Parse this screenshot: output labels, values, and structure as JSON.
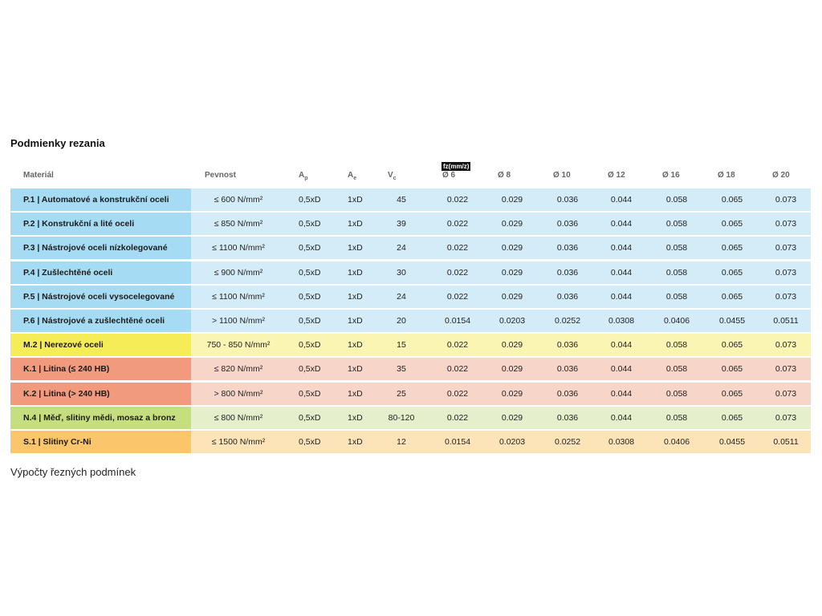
{
  "title": "Podmienky rezania",
  "fz_label": "fz(mm/z)",
  "header": [
    "Materiál",
    "Pevnost",
    {
      "main": "A",
      "sub": "p"
    },
    {
      "main": "A",
      "sub": "e"
    },
    {
      "main": "V",
      "sub": "c"
    },
    "Ø 6",
    "Ø 8",
    "Ø 10",
    "Ø 12",
    "Ø 16",
    "Ø 18",
    "Ø 20"
  ],
  "rows": [
    [
      "P.1 | Automatové a konstrukční oceli",
      "≤ 600 N/mm²",
      "0,5xD",
      "1xD",
      "45",
      "0.022",
      "0.029",
      "0.036",
      "0.044",
      "0.058",
      "0.065",
      "0.073"
    ],
    [
      "P.2 | Konstrukční a lité oceli",
      "≤ 850 N/mm²",
      "0,5xD",
      "1xD",
      "39",
      "0.022",
      "0.029",
      "0.036",
      "0.044",
      "0.058",
      "0.065",
      "0.073"
    ],
    [
      "P.3 | Nástrojové oceli nízkolegované",
      "≤ 1100 N/mm²",
      "0,5xD",
      "1xD",
      "24",
      "0.022",
      "0.029",
      "0.036",
      "0.044",
      "0.058",
      "0.065",
      "0.073"
    ],
    [
      "P.4 | Zušlechtěné oceli",
      "≤ 900 N/mm²",
      "0,5xD",
      "1xD",
      "30",
      "0.022",
      "0.029",
      "0.036",
      "0.044",
      "0.058",
      "0.065",
      "0.073"
    ],
    [
      "P.5 | Nástrojové oceli vysocelegované",
      "≤ 1100 N/mm²",
      "0,5xD",
      "1xD",
      "24",
      "0.022",
      "0.029",
      "0.036",
      "0.044",
      "0.058",
      "0.065",
      "0.073"
    ],
    [
      "P.6 | Nástrojové a zušlechtěné oceli",
      "> 1100 N/mm²",
      "0,5xD",
      "1xD",
      "20",
      "0.0154",
      "0.0203",
      "0.0252",
      "0.0308",
      "0.0406",
      "0.0455",
      "0.0511"
    ],
    [
      "M.2 | Nerezové oceli",
      "750 - 850 N/mm²",
      "0,5xD",
      "1xD",
      "15",
      "0.022",
      "0.029",
      "0.036",
      "0.044",
      "0.058",
      "0.065",
      "0.073"
    ],
    [
      "K.1 | Litina (≤ 240 HB)",
      "≤ 820 N/mm²",
      "0,5xD",
      "1xD",
      "35",
      "0.022",
      "0.029",
      "0.036",
      "0.044",
      "0.058",
      "0.065",
      "0.073"
    ],
    [
      "K.2 | Litina (> 240 HB)",
      "> 800 N/mm²",
      "0,5xD",
      "1xD",
      "25",
      "0.022",
      "0.029",
      "0.036",
      "0.044",
      "0.058",
      "0.065",
      "0.073"
    ],
    [
      "N.4 | Měď, slitiny mědi, mosaz a bronz",
      "≤ 800 N/mm²",
      "0,5xD",
      "1xD",
      "80-120",
      "0.022",
      "0.029",
      "0.036",
      "0.044",
      "0.058",
      "0.065",
      "0.073"
    ],
    [
      "S.1 | Slitiny Cr-Ni",
      "≤ 1500 N/mm²",
      "0,5xD",
      "1xD",
      "12",
      "0.0154",
      "0.0203",
      "0.0252",
      "0.0308",
      "0.0406",
      "0.0455",
      "0.0511"
    ]
  ],
  "footer": "Výpočty řezných podmínek"
}
